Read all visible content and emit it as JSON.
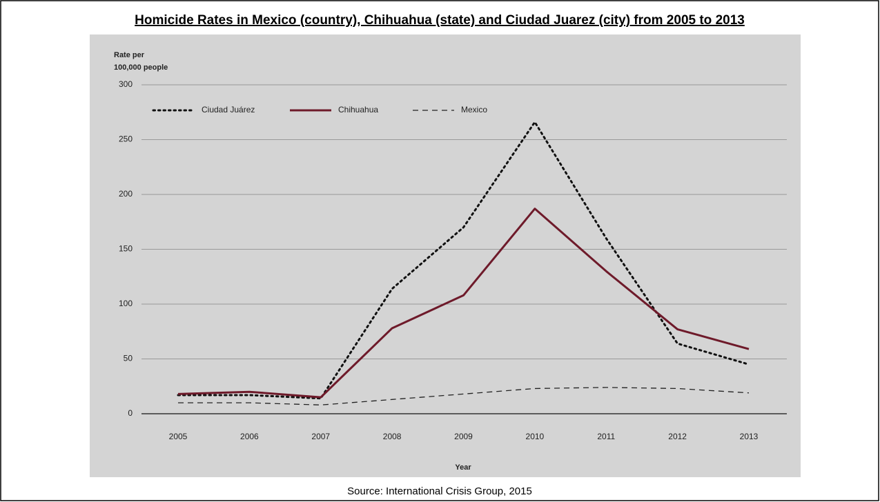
{
  "chart_data": {
    "type": "line",
    "title": "Homicide Rates in Mexico (country), Chihuahua (state) and Ciudad Juarez (city) from 2005 to 2013",
    "y_label": [
      "Rate per",
      "100,000 people"
    ],
    "x_label": "Year",
    "source": "Source: International Crisis Group, 2015",
    "categories": [
      "2005",
      "2006",
      "2007",
      "2008",
      "2009",
      "2010",
      "2011",
      "2012",
      "2013"
    ],
    "series": [
      {
        "name": "Ciudad Juárez",
        "color": "#111111",
        "style": "dotted",
        "values": [
          17,
          17,
          14,
          114,
          170,
          266,
          160,
          64,
          45
        ]
      },
      {
        "name": "Chihuahua",
        "color": "#6e1a2a",
        "style": "solid",
        "values": [
          18,
          20,
          15,
          78,
          108,
          187,
          130,
          77,
          59
        ]
      },
      {
        "name": "Mexico",
        "color": "#222222",
        "style": "dashed",
        "values": [
          10,
          10,
          8,
          13,
          18,
          23,
          24,
          23,
          19
        ]
      }
    ],
    "ylim": [
      0,
      300
    ],
    "yticks": [
      0,
      50,
      100,
      150,
      200,
      250,
      300
    ],
    "grid": true,
    "legend": "top-left"
  }
}
